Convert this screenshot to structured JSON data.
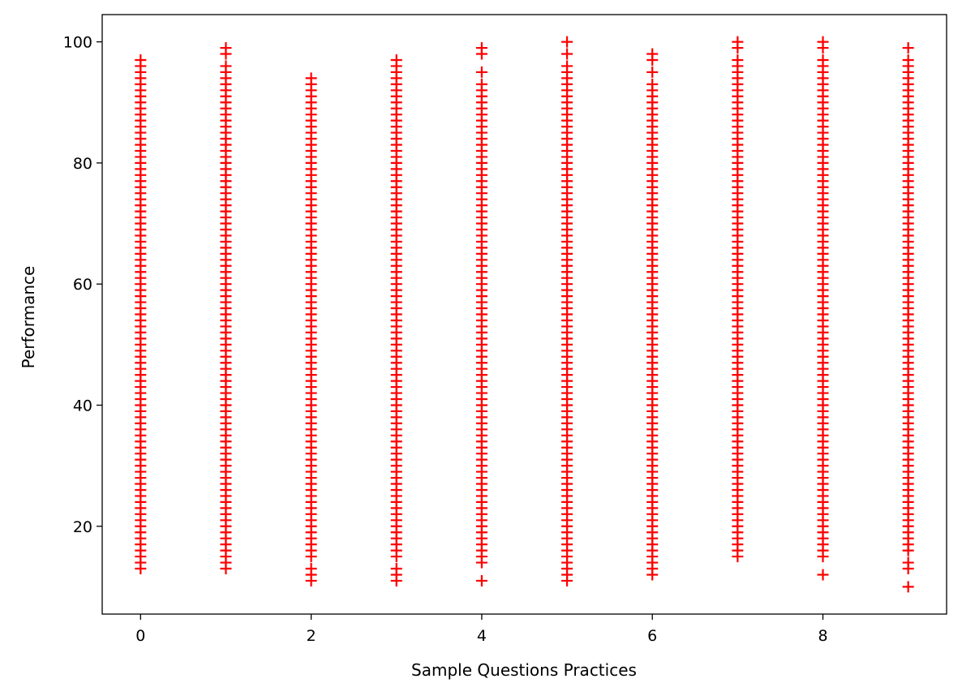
{
  "chart_data": {
    "type": "scatter",
    "xlabel": "Sample Questions Practices",
    "ylabel": "Performance",
    "xlim": [
      -0.45,
      9.45
    ],
    "ylim": [
      5.5,
      104.5
    ],
    "xticks": [
      "0",
      "2",
      "4",
      "6",
      "8"
    ],
    "yticks": [
      "20",
      "40",
      "60",
      "80",
      "100"
    ],
    "grid": false,
    "marker": "+",
    "color": "#ff0000",
    "series": [
      {
        "points": [
          {
            "x": 0,
            "min": 13,
            "max": 95,
            "extra": [
              96,
              97
            ]
          },
          {
            "x": 1,
            "min": 13,
            "max": 96,
            "extra": [
              98,
              99
            ]
          },
          {
            "x": 2,
            "min": 15,
            "max": 94,
            "extra": [
              11,
              12,
              13
            ]
          },
          {
            "x": 3,
            "min": 15,
            "max": 97,
            "extra": [
              11,
              12,
              13
            ]
          },
          {
            "x": 4,
            "min": 14,
            "max": 93,
            "extra": [
              11,
              95,
              98,
              99
            ]
          },
          {
            "x": 5,
            "min": 11,
            "max": 96,
            "extra": [
              98,
              100
            ]
          },
          {
            "x": 6,
            "min": 12,
            "max": 93,
            "extra": [
              95,
              97,
              98
            ]
          },
          {
            "x": 7,
            "min": 15,
            "max": 97,
            "extra": [
              99,
              100
            ]
          },
          {
            "x": 8,
            "min": 15,
            "max": 97,
            "extra": [
              12,
              17,
              18,
              20,
              21,
              99,
              100
            ]
          },
          {
            "x": 9,
            "min": 16,
            "max": 97,
            "extra": [
              10,
              13,
              14,
              99
            ]
          }
        ]
      }
    ]
  }
}
